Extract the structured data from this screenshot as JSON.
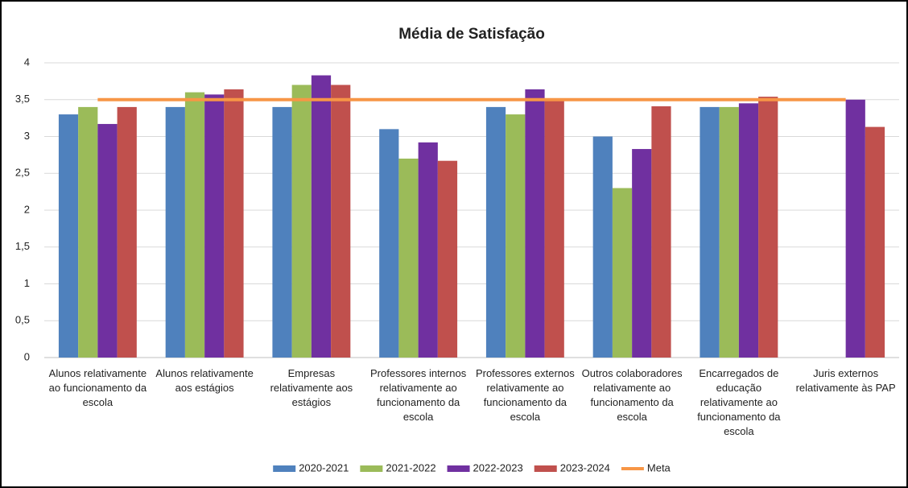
{
  "chart_data": {
    "type": "bar",
    "title": "Média de Satisfação",
    "categories": [
      "Alunos relativamente ao funcionamento da escola",
      "Alunos relativamente aos estágios",
      "Empresas relativamente aos estágios",
      "Professores internos relativamente ao funcionamento da escola",
      "Professores externos relativamente ao funcionamento da escola",
      "Outros colaboradores relativamente ao funcionamento da escola",
      "Encarregados de educação relativamente ao funcionamento da escola",
      "Juris externos relativamente às PAP"
    ],
    "series": [
      {
        "name": "2020-2021",
        "color": "#4f81bd",
        "values": [
          3.3,
          3.4,
          3.4,
          3.1,
          3.4,
          3.0,
          3.4,
          null
        ]
      },
      {
        "name": "2021-2022",
        "color": "#9bbb59",
        "values": [
          3.4,
          3.6,
          3.7,
          2.7,
          3.3,
          2.3,
          3.4,
          null
        ]
      },
      {
        "name": "2022-2023",
        "color": "#7030a0",
        "values": [
          3.17,
          3.57,
          3.83,
          2.92,
          3.64,
          2.83,
          3.45,
          3.5
        ]
      },
      {
        "name": "2023-2024",
        "color": "#c0504d",
        "values": [
          3.4,
          3.64,
          3.7,
          2.67,
          3.5,
          3.41,
          3.54,
          3.13
        ]
      },
      {
        "name": "Meta",
        "color": "#f79646",
        "type": "line",
        "values": [
          3.5,
          3.5,
          3.5,
          3.5,
          3.5,
          3.5,
          3.5,
          3.5
        ]
      }
    ],
    "ylim": [
      0,
      4
    ],
    "yticks": [
      0,
      {
        "value": 0.5,
        "label": "0,5"
      },
      1,
      {
        "value": 1.5,
        "label": "1,5"
      },
      2,
      {
        "value": 2.5,
        "label": "2,5"
      },
      3,
      {
        "value": 3.5,
        "label": "3,5"
      },
      4
    ],
    "grid": true,
    "legend": "bottom"
  }
}
